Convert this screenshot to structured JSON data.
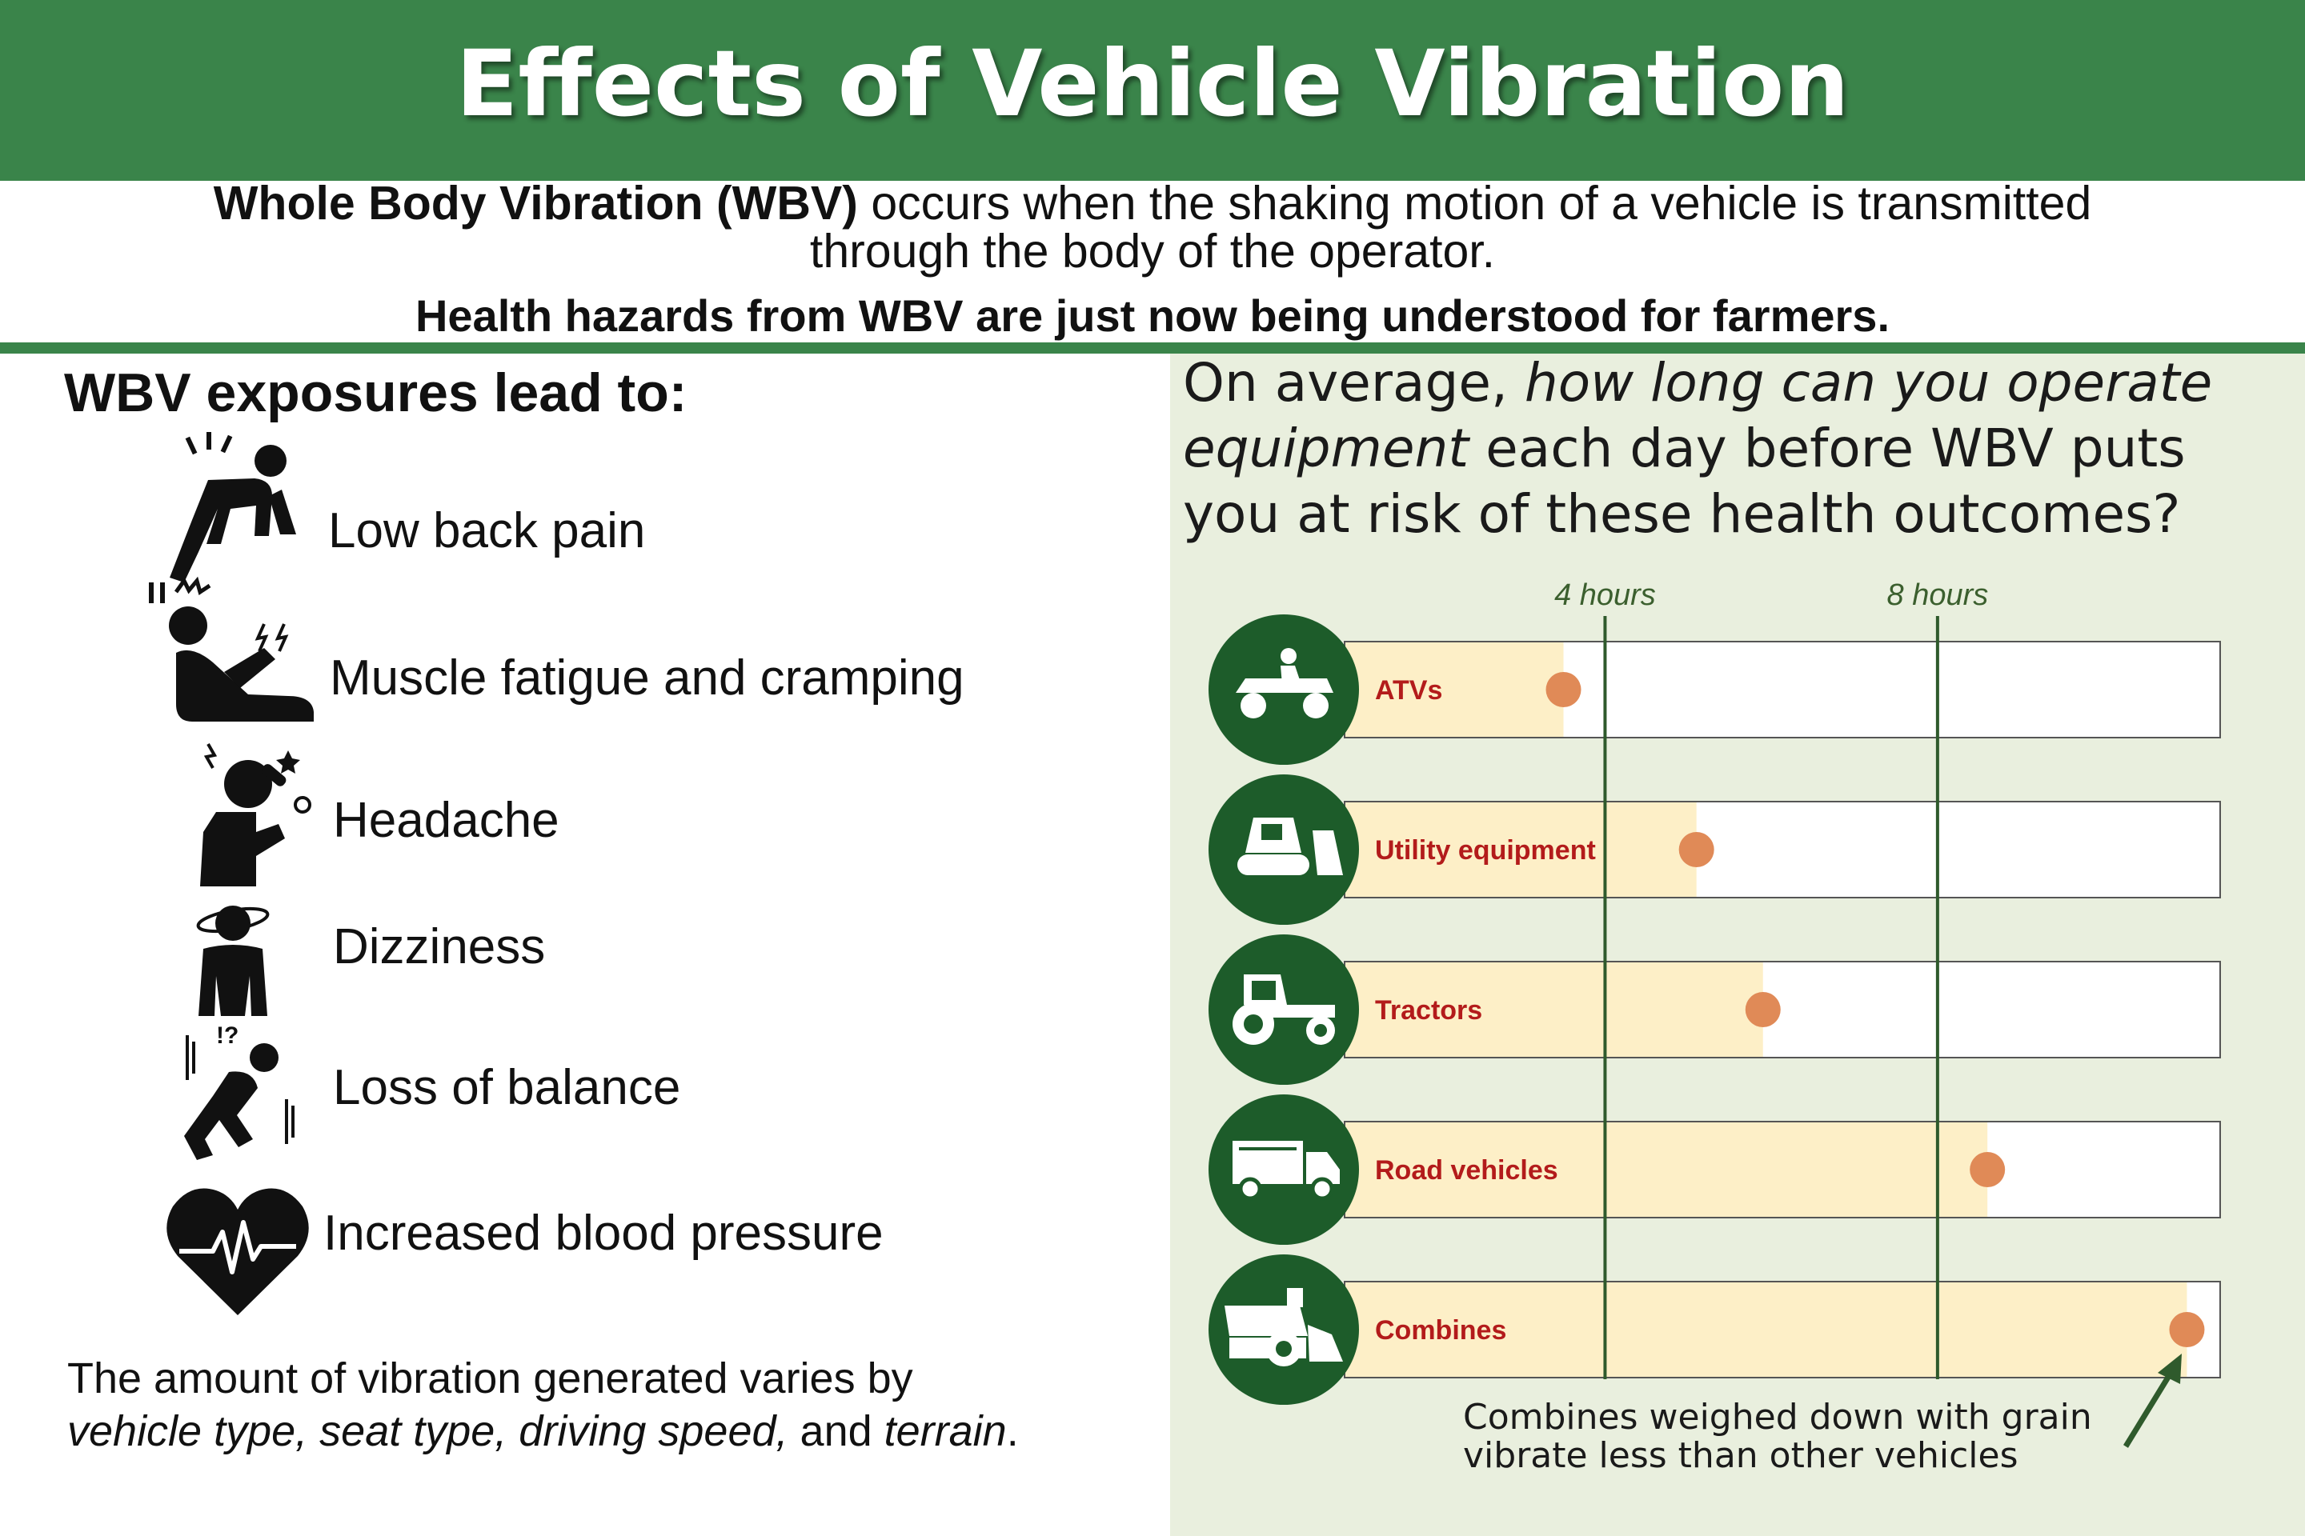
{
  "header": {
    "title": "Effects of Vehicle Vibration"
  },
  "intro": {
    "bold": "Whole Body Vibration (WBV)",
    "rest1": " occurs when the shaking motion of a vehicle is transmitted",
    "rest2": "through the body of the operator.",
    "hazard": "Health hazards from WBV are just now being understood for farmers."
  },
  "effects": {
    "heading": "WBV exposures lead to:",
    "items": [
      {
        "label": "Low back pain",
        "icon": "back-pain-icon"
      },
      {
        "label": "Muscle fatigue and cramping",
        "icon": "muscle-cramp-icon"
      },
      {
        "label": "Headache",
        "icon": "headache-icon"
      },
      {
        "label": "Dizziness",
        "icon": "dizziness-icon"
      },
      {
        "label": "Loss of balance",
        "icon": "loss-of-balance-icon"
      },
      {
        "label": "Increased blood pressure",
        "icon": "heart-pulse-icon"
      }
    ]
  },
  "note": {
    "line1": "The amount of vibration generated varies by",
    "v1": "vehicle type, seat type, driving speed,",
    "and": " and ",
    "v2": "terrain",
    "end": "."
  },
  "question": {
    "q1": "On average, ",
    "q2": "how long can you operate equipment",
    "q3": " each day before WBV puts you at risk of these health outcomes?"
  },
  "chart_data": {
    "type": "bar",
    "orientation": "horizontal",
    "unit": "hours",
    "reference_lines": [
      {
        "value": 4,
        "label": "4 hours"
      },
      {
        "value": 8,
        "label": "8 hours"
      }
    ],
    "categories": [
      "ATVs",
      "Utility equipment",
      "Tractors",
      "Road vehicles",
      "Combines"
    ],
    "icons": [
      "atv-icon",
      "bulldozer-icon",
      "tractor-icon",
      "truck-icon",
      "combine-icon"
    ],
    "values": [
      3.5,
      5.1,
      5.9,
      8.6,
      11.0
    ],
    "xlim": [
      0,
      11.4
    ],
    "colors": {
      "fill": "#fdefc7",
      "marker": "#e08a57",
      "label": "#b31b1b",
      "icon_bg": "#1d5c2a",
      "lines": "#2f5a2c"
    }
  },
  "annotation": {
    "line1": "Combines weighed down with grain",
    "line2": "vibrate less than other vehicles"
  }
}
